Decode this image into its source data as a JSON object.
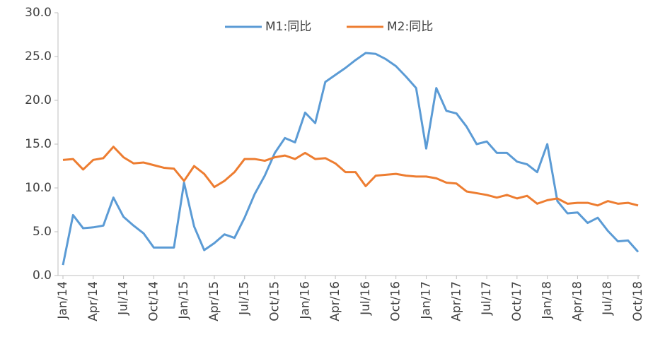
{
  "chart_data": {
    "type": "line",
    "categories": [
      "Jan/14",
      null,
      null,
      "Apr/14",
      null,
      null,
      "Jul/14",
      null,
      null,
      "Oct/14",
      null,
      null,
      "Jan/15",
      null,
      null,
      "Apr/15",
      null,
      null,
      "Jul/15",
      null,
      null,
      "Oct/15",
      null,
      null,
      "Jan/16",
      null,
      null,
      "Apr/16",
      null,
      null,
      "Jul/16",
      null,
      null,
      "Oct/16",
      null,
      null,
      "Jan/17",
      null,
      null,
      "Apr/17",
      null,
      null,
      "Jul/17",
      null,
      null,
      "Oct/17",
      null,
      null,
      "Jan/18",
      null,
      null,
      "Apr/18",
      null,
      null,
      "Jul/18",
      null,
      null,
      "Oct/18"
    ],
    "series": [
      {
        "name": "M1:同比",
        "color": "#5b9bd5",
        "values": [
          1.2,
          6.9,
          5.4,
          5.5,
          5.7,
          8.9,
          6.7,
          5.7,
          4.8,
          3.2,
          3.2,
          3.2,
          10.6,
          5.6,
          2.9,
          3.7,
          4.7,
          4.3,
          6.6,
          9.3,
          11.4,
          14.0,
          15.7,
          15.2,
          18.6,
          17.4,
          22.1,
          22.9,
          23.7,
          24.6,
          25.4,
          25.3,
          24.7,
          23.9,
          22.7,
          21.4,
          14.5,
          21.4,
          18.8,
          18.5,
          17.0,
          15.0,
          15.3,
          14.0,
          14.0,
          13.0,
          12.7,
          11.8,
          15.0,
          8.5,
          7.1,
          7.2,
          6.0,
          6.6,
          5.1,
          3.9,
          4.0,
          2.7
        ]
      },
      {
        "name": "M2:同比",
        "color": "#ed7d31",
        "values": [
          13.2,
          13.3,
          12.1,
          13.2,
          13.4,
          14.7,
          13.5,
          12.8,
          12.9,
          12.6,
          12.3,
          12.2,
          10.8,
          12.5,
          11.6,
          10.1,
          10.8,
          11.8,
          13.3,
          13.3,
          13.1,
          13.5,
          13.7,
          13.3,
          14.0,
          13.3,
          13.4,
          12.8,
          11.8,
          11.8,
          10.2,
          11.4,
          11.5,
          11.6,
          11.4,
          11.3,
          11.3,
          11.1,
          10.6,
          10.5,
          9.6,
          9.4,
          9.2,
          8.9,
          9.2,
          8.8,
          9.1,
          8.2,
          8.6,
          8.8,
          8.2,
          8.3,
          8.3,
          8.0,
          8.5,
          8.2,
          8.3,
          8.0
        ]
      }
    ],
    "ylim": [
      0,
      30
    ],
    "yticks": [
      {
        "value": 0,
        "label": "0.0"
      },
      {
        "value": 5,
        "label": "5.0"
      },
      {
        "value": 10,
        "label": "10.0"
      },
      {
        "value": 15,
        "label": "15.0"
      },
      {
        "value": 20,
        "label": "20.0"
      },
      {
        "value": 25,
        "label": "25.0"
      },
      {
        "value": 30,
        "label": "30.0"
      }
    ],
    "grid": false,
    "legend": "top"
  }
}
